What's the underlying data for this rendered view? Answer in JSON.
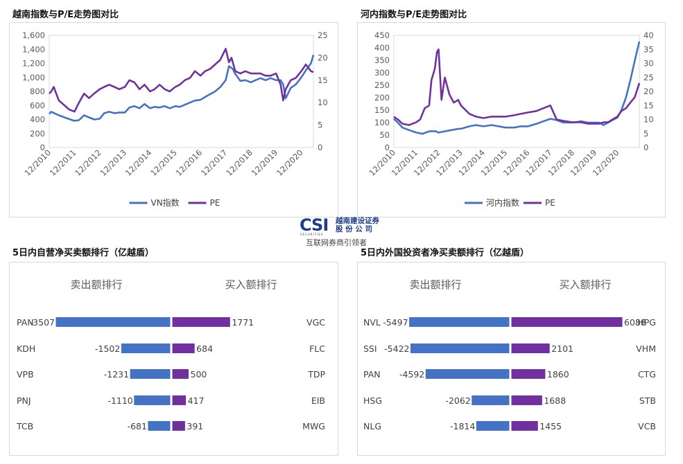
{
  "sections": {
    "vn_title": "越南指数与P/E走势图对比",
    "hn_title": "河内指数与P/E走势图对比",
    "prop_title": "5日内自营净买卖额排行（亿越盾）",
    "foreign_title": "5日内外国投资者净买卖额排行（亿越盾）"
  },
  "logo": {
    "main": "CSI",
    "cn_line1": "越南建设证券",
    "cn_line2": "股 份 公 司",
    "tiny": "SECURITIES",
    "sub": "互联网券商引领者"
  },
  "colors": {
    "index": "#4472C4",
    "pe": "#7030A0",
    "sell": "#4472C4",
    "buy": "#7030A0",
    "grid": "#d9d9d9",
    "axis": "#595959"
  },
  "chart_data": [
    {
      "type": "line",
      "title": "越南指数与P/E走势图对比",
      "x_labels": [
        "12/2010",
        "12/2011",
        "12/2012",
        "12/2013",
        "12/2014",
        "12/2015",
        "12/2016",
        "12/2017",
        "12/2018",
        "12/2019",
        "12/2020"
      ],
      "x_ticks": [
        2010.92,
        2011.92,
        2012.92,
        2013.92,
        2014.92,
        2015.92,
        2016.92,
        2017.92,
        2018.92,
        2019.92,
        2020.92
      ],
      "xlim": [
        2010.92,
        2021.4
      ],
      "y_left": {
        "lim": [
          0,
          1600
        ],
        "ticks": [
          "0",
          "200",
          "400",
          "600",
          "800",
          "1,000",
          "1,200",
          "1,400",
          "1,600"
        ]
      },
      "y_right": {
        "lim": [
          0,
          25
        ],
        "ticks": [
          "0",
          "5",
          "10",
          "15",
          "20",
          "25"
        ]
      },
      "legend": [
        "VN指数",
        "PE"
      ],
      "legend_position": "bottom",
      "series": [
        {
          "name": "VN指数",
          "axis": "left",
          "x": [
            2010.92,
            2011.0,
            2011.3,
            2011.6,
            2011.92,
            2012.1,
            2012.3,
            2012.5,
            2012.7,
            2012.92,
            2013.1,
            2013.3,
            2013.5,
            2013.7,
            2013.92,
            2014.1,
            2014.3,
            2014.5,
            2014.7,
            2014.92,
            2015.1,
            2015.3,
            2015.5,
            2015.7,
            2015.92,
            2016.1,
            2016.3,
            2016.5,
            2016.7,
            2016.92,
            2017.1,
            2017.3,
            2017.5,
            2017.7,
            2017.92,
            2018.05,
            2018.2,
            2018.3,
            2018.5,
            2018.7,
            2018.92,
            2019.1,
            2019.3,
            2019.5,
            2019.7,
            2019.92,
            2020.1,
            2020.2,
            2020.3,
            2020.5,
            2020.7,
            2020.92,
            2021.1,
            2021.3,
            2021.4
          ],
          "y": [
            480,
            510,
            460,
            420,
            380,
            390,
            460,
            430,
            400,
            410,
            490,
            510,
            490,
            500,
            500,
            570,
            590,
            560,
            620,
            560,
            580,
            570,
            590,
            560,
            590,
            580,
            610,
            640,
            670,
            680,
            720,
            760,
            800,
            860,
            960,
            1160,
            1120,
            1050,
            950,
            960,
            930,
            960,
            990,
            960,
            990,
            960,
            960,
            900,
            700,
            850,
            900,
            1000,
            1100,
            1200,
            1320
          ]
        },
        {
          "name": "PE",
          "axis": "right",
          "x": [
            2010.92,
            2011.0,
            2011.1,
            2011.3,
            2011.5,
            2011.7,
            2011.92,
            2012.1,
            2012.3,
            2012.5,
            2012.7,
            2012.92,
            2013.1,
            2013.3,
            2013.5,
            2013.7,
            2013.92,
            2014.1,
            2014.3,
            2014.5,
            2014.7,
            2014.92,
            2015.1,
            2015.3,
            2015.5,
            2015.7,
            2015.92,
            2016.1,
            2016.3,
            2016.5,
            2016.7,
            2016.92,
            2017.1,
            2017.3,
            2017.5,
            2017.7,
            2017.92,
            2018.05,
            2018.15,
            2018.3,
            2018.5,
            2018.7,
            2018.92,
            2019.1,
            2019.3,
            2019.5,
            2019.7,
            2019.92,
            2020.1,
            2020.2,
            2020.3,
            2020.5,
            2020.7,
            2020.92,
            2021.1,
            2021.3,
            2021.4
          ],
          "y": [
            12,
            12.5,
            13.5,
            10.5,
            9.5,
            8.5,
            8,
            10,
            12,
            11,
            12,
            13,
            13.5,
            14,
            13.5,
            13,
            13.5,
            15,
            14.5,
            13,
            14,
            12.5,
            13,
            14,
            13,
            12.5,
            13.5,
            14,
            15,
            15.5,
            17,
            16,
            17,
            17.5,
            18.5,
            19.5,
            22,
            19,
            20,
            17,
            16.5,
            17,
            16.5,
            16.5,
            16.5,
            16,
            16,
            16.5,
            14,
            10.5,
            13,
            15,
            15.5,
            17,
            18.5,
            17,
            16.8
          ]
        }
      ]
    },
    {
      "type": "line",
      "title": "河内指数与P/E走势图对比",
      "x_labels": [
        "12/2010",
        "12/2011",
        "12/2012",
        "12/2013",
        "12/2014",
        "12/2015",
        "12/2016",
        "12/2017",
        "12/2018",
        "12/2019",
        "12/2020"
      ],
      "x_ticks": [
        2010.92,
        2011.92,
        2012.92,
        2013.92,
        2014.92,
        2015.92,
        2016.92,
        2017.92,
        2018.92,
        2019.92,
        2020.92
      ],
      "xlim": [
        2010.92,
        2021.9
      ],
      "y_left": {
        "lim": [
          0,
          450
        ],
        "ticks": [
          "0",
          "50",
          "100",
          "150",
          "200",
          "250",
          "300",
          "350",
          "400",
          "450"
        ]
      },
      "y_right": {
        "lim": [
          0,
          40
        ],
        "ticks": [
          "0",
          "5",
          "10",
          "15",
          "20",
          "25",
          "30",
          "35",
          "40"
        ]
      },
      "legend": [
        "河内指数",
        "PE"
      ],
      "legend_position": "bottom",
      "series": [
        {
          "name": "河内指数",
          "axis": "left",
          "x": [
            2010.92,
            2011.1,
            2011.3,
            2011.6,
            2011.92,
            2012.2,
            2012.5,
            2012.8,
            2012.92,
            2013.2,
            2013.5,
            2013.8,
            2013.92,
            2014.3,
            2014.6,
            2014.92,
            2015.3,
            2015.6,
            2015.92,
            2016.3,
            2016.6,
            2016.92,
            2017.3,
            2017.6,
            2017.92,
            2018.2,
            2018.5,
            2018.92,
            2019.3,
            2019.6,
            2019.92,
            2020.1,
            2020.3,
            2020.5,
            2020.7,
            2020.92,
            2021.1,
            2021.3,
            2021.5,
            2021.7,
            2021.9
          ],
          "y": [
            115,
            100,
            80,
            70,
            60,
            55,
            65,
            65,
            60,
            65,
            70,
            75,
            75,
            85,
            90,
            85,
            90,
            85,
            80,
            80,
            85,
            85,
            95,
            105,
            115,
            110,
            100,
            100,
            105,
            100,
            100,
            100,
            90,
            100,
            110,
            120,
            150,
            200,
            270,
            350,
            425
          ]
        },
        {
          "name": "PE",
          "axis": "right",
          "x": [
            2010.92,
            2011.1,
            2011.3,
            2011.6,
            2011.92,
            2012.1,
            2012.3,
            2012.5,
            2012.6,
            2012.75,
            2012.85,
            2012.92,
            2013.05,
            2013.2,
            2013.4,
            2013.6,
            2013.8,
            2013.92,
            2014.3,
            2014.6,
            2014.92,
            2015.3,
            2015.6,
            2015.92,
            2016.3,
            2016.6,
            2016.92,
            2017.3,
            2017.6,
            2017.92,
            2018.2,
            2018.5,
            2018.92,
            2019.3,
            2019.6,
            2019.92,
            2020.1,
            2020.3,
            2020.5,
            2020.7,
            2020.92,
            2021.1,
            2021.3,
            2021.5,
            2021.7,
            2021.9
          ],
          "y": [
            11,
            10,
            8.5,
            8,
            9,
            10,
            14,
            15,
            24,
            28,
            34,
            35,
            17,
            25,
            19,
            16,
            17,
            15,
            12,
            11,
            10.5,
            11,
            11,
            11,
            11.5,
            12,
            12.5,
            13,
            14,
            15,
            10,
            9.5,
            9,
            9,
            8.5,
            8.5,
            8.5,
            9,
            9,
            10,
            11,
            13,
            14,
            16,
            18,
            23
          ]
        }
      ]
    }
  ],
  "rankings": {
    "proprietary": {
      "sell_header": "卖出额排行",
      "buy_header": "买入额排行",
      "scale_max": 3507,
      "rows": [
        {
          "sell_code": "PAN",
          "sell_value": "-3507",
          "sell": 3507,
          "buy_code": "VGC",
          "buy_value": "1771",
          "buy": 1771
        },
        {
          "sell_code": "KDH",
          "sell_value": "-1502",
          "sell": 1502,
          "buy_code": "FLC",
          "buy_value": "684",
          "buy": 684
        },
        {
          "sell_code": "VPB",
          "sell_value": "-1231",
          "sell": 1231,
          "buy_code": "TDP",
          "buy_value": "500",
          "buy": 500
        },
        {
          "sell_code": "PNJ",
          "sell_value": "-1110",
          "sell": 1110,
          "buy_code": "EIB",
          "buy_value": "417",
          "buy": 417
        },
        {
          "sell_code": "TCB",
          "sell_value": "-681",
          "sell": 681,
          "buy_code": "MWG",
          "buy_value": "391",
          "buy": 391
        }
      ]
    },
    "foreign": {
      "sell_header": "卖出额排行",
      "buy_header": "买入额排行",
      "scale_max": 6088,
      "rows": [
        {
          "sell_code": "NVL",
          "sell_value": "-5497",
          "sell": 5497,
          "buy_code": "HPG",
          "buy_value": "6088",
          "buy": 6088
        },
        {
          "sell_code": "SSI",
          "sell_value": "-5422",
          "sell": 5422,
          "buy_code": "VHM",
          "buy_value": "2101",
          "buy": 2101
        },
        {
          "sell_code": "PAN",
          "sell_value": "-4592",
          "sell": 4592,
          "buy_code": "CTG",
          "buy_value": "1860",
          "buy": 1860
        },
        {
          "sell_code": "HSG",
          "sell_value": "-2062",
          "sell": 2062,
          "buy_code": "STB",
          "buy_value": "1688",
          "buy": 1688
        },
        {
          "sell_code": "NLG",
          "sell_value": "-1814",
          "sell": 1814,
          "buy_code": "VCB",
          "buy_value": "1455",
          "buy": 1455
        }
      ]
    }
  }
}
